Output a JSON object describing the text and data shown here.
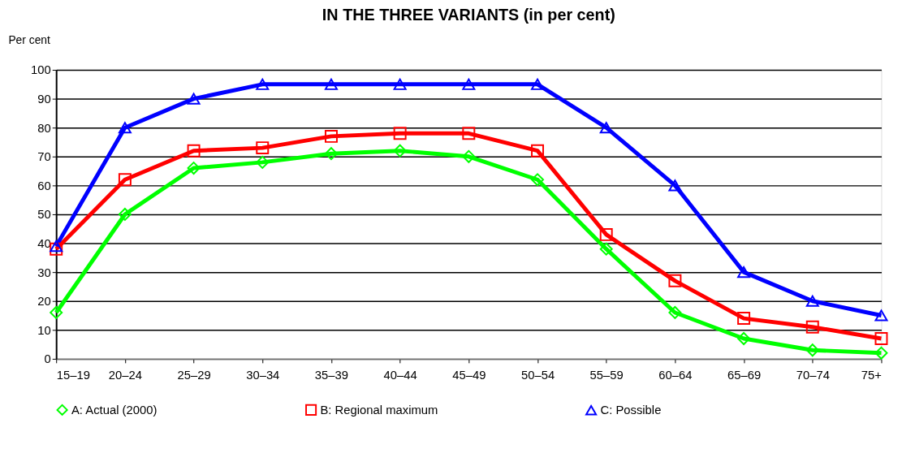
{
  "chart_data": {
    "type": "line",
    "title": "IN THE THREE VARIANTS (in per cent)",
    "ylabel": "Per cent",
    "categories": [
      "15–19",
      "20–24",
      "25–29",
      "30–34",
      "35–39",
      "40–44",
      "45–49",
      "50–54",
      "55–59",
      "60–64",
      "65–69",
      "70–74",
      "75+"
    ],
    "series": [
      {
        "name": "A: Actual (2000)",
        "color": "#00ff00",
        "marker": "diamond",
        "values": [
          16,
          50,
          66,
          68,
          71,
          72,
          70,
          62,
          38,
          16,
          7,
          3,
          2
        ]
      },
      {
        "name": "B: Regional maximum",
        "color": "#ff0000",
        "marker": "square",
        "values": [
          38,
          62,
          72,
          73,
          77,
          78,
          78,
          72,
          43,
          27,
          14,
          11,
          7
        ]
      },
      {
        "name": "C: Possible",
        "color": "#0000ff",
        "marker": "triangle",
        "values": [
          39,
          80,
          90,
          95,
          95,
          95,
          95,
          95,
          80,
          60,
          30,
          20,
          15
        ]
      }
    ],
    "ylim": [
      0,
      100
    ],
    "yticks": [
      0,
      10,
      20,
      30,
      40,
      50,
      60,
      70,
      80,
      90,
      100
    ],
    "grid": "y",
    "legend": "bottom",
    "line_style": "solid"
  }
}
